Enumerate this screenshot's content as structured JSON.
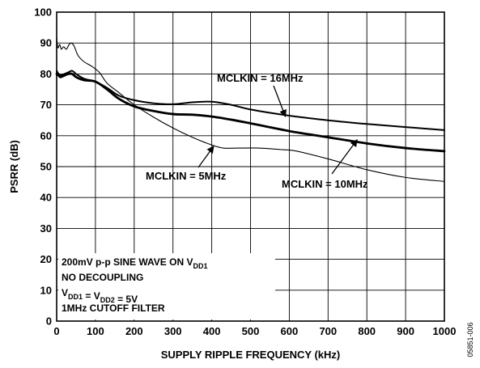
{
  "chart_data": {
    "type": "line",
    "xlabel": "SUPPLY RIPPLE FREQUENCY (kHz)",
    "ylabel": "PSRR (dB)",
    "xlim": [
      0,
      1000
    ],
    "ylim": [
      0,
      100
    ],
    "x_ticks": [
      "0",
      "100",
      "200",
      "300",
      "400",
      "500",
      "600",
      "700",
      "800",
      "900",
      "1000"
    ],
    "y_ticks": [
      "0",
      "10",
      "20",
      "30",
      "40",
      "50",
      "60",
      "70",
      "80",
      "90",
      "100"
    ],
    "grid": true,
    "series": [
      {
        "name": "MCLKIN = 16MHz",
        "x": [
          0,
          5,
          10,
          20,
          30,
          40,
          50,
          70,
          100,
          130,
          160,
          200,
          250,
          300,
          350,
          400,
          450,
          500,
          600,
          700,
          800,
          900,
          1000
        ],
        "y": [
          81,
          80,
          79.5,
          80,
          80.5,
          81,
          80,
          78.5,
          77.5,
          75.5,
          73,
          71.5,
          70.5,
          70.2,
          70.8,
          71,
          70,
          68.5,
          66.5,
          65,
          63.8,
          62.8,
          61.8
        ]
      },
      {
        "name": "MCLKIN = 10MHz",
        "x": [
          0,
          5,
          10,
          20,
          30,
          40,
          50,
          70,
          100,
          130,
          160,
          200,
          250,
          300,
          350,
          400,
          450,
          500,
          600,
          700,
          800,
          900,
          1000
        ],
        "y": [
          80,
          79.5,
          79,
          79.5,
          80,
          80,
          79,
          78,
          77.5,
          75,
          72,
          69.5,
          68,
          67,
          66.8,
          66.2,
          65.2,
          64,
          61.5,
          59.5,
          57.5,
          56,
          55
        ]
      },
      {
        "name": "MCLKIN = 5MHz",
        "x": [
          0,
          3,
          8,
          12,
          18,
          25,
          32,
          38,
          45,
          55,
          70,
          90,
          110,
          130,
          160,
          200,
          250,
          300,
          350,
          400,
          430,
          470,
          520,
          580,
          620,
          700,
          800,
          900,
          1000
        ],
        "y": [
          92,
          88.5,
          89.5,
          88,
          88.8,
          88,
          89.5,
          90,
          89,
          86,
          84,
          82.5,
          80.5,
          77,
          74,
          70,
          66,
          62.5,
          59.5,
          57,
          56,
          56,
          56,
          55.5,
          55,
          52.5,
          49,
          46.5,
          45.2
        ]
      }
    ],
    "annotations": [
      {
        "label": "MCLKIN = 16MHz",
        "target_x": 590,
        "target_y": 66.2
      },
      {
        "label": "MCLKIN = 10MHz",
        "target_x": 775,
        "target_y": 58.7
      },
      {
        "label": "MCLKIN = 5MHz",
        "target_x": 405,
        "target_y": 56.6
      }
    ],
    "notes": [
      {
        "parts": [
          {
            "t": "200mV p-p SINE WAVE ON V"
          },
          {
            "t": "DD1",
            "sub": true
          }
        ]
      },
      {
        "parts": [
          {
            "t": "NO DECOUPLING"
          }
        ]
      },
      {
        "parts": [
          {
            "t": "V"
          },
          {
            "t": "DD1",
            "sub": true
          },
          {
            "t": " = V"
          },
          {
            "t": "DD2",
            "sub": true
          },
          {
            "t": " = 5V"
          }
        ]
      },
      {
        "parts": [
          {
            "t": "1MHz CUTOFF FILTER"
          }
        ]
      }
    ],
    "figure_id": "05851-006"
  }
}
